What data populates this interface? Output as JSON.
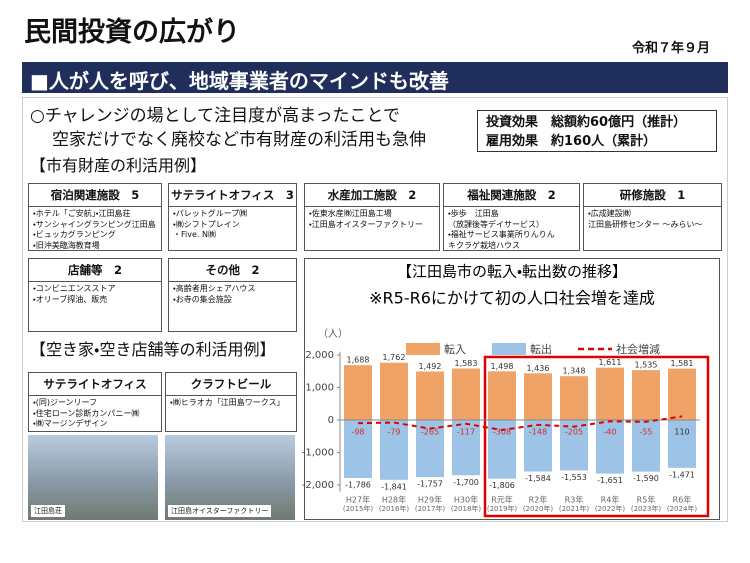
{
  "header": {
    "title": "民間投資の広がり",
    "date": "令和７年９月",
    "banner": "■人が人を呼び、地域事業者のマインドも改善"
  },
  "intro": {
    "lines": [
      "○チャレンジの場として注目度が高まったことで",
      "空家だけでなく廃校など市有財産の利活用も急伸"
    ],
    "effects": [
      "投資効果　総額約60億円（推計）",
      "雇用効果　約160人（累計）"
    ]
  },
  "public_section": {
    "heading": "【市有財産の利活用例】",
    "cards": [
      {
        "title": "宿泊関連施設　5",
        "items": [
          "・ホテル「ご安航」・江田島荘",
          "・サンシャイングランピング江田島",
          "・ビュッカグランピング",
          "・旧沖美臨海教育場"
        ]
      },
      {
        "title": "サテライトオフィス　3",
        "items": [
          "・パレットグループ㈱",
          "・㈱シフトプレイン",
          "・Five. N㈱"
        ]
      },
      {
        "title": "水産加工施設　2",
        "items": [
          "・佐東水産㈱江田島工場",
          "・江田島オイスターファクトリー"
        ]
      },
      {
        "title": "福祉関連施設　2",
        "items": [
          "・歩歩　江田島",
          "（放課後等デイサービス）",
          "・福祉サービス事業所りんりん",
          "キクラゲ栽培ハウス"
        ]
      },
      {
        "title": "研修施設　1",
        "items": [
          "・広成建設㈱",
          "江田島研修センター ～みらい～"
        ]
      },
      {
        "title": "店舗等　2",
        "items": [
          "・コンビニエンスストア",
          "・オリーブ搾油、販売"
        ]
      },
      {
        "title": "その他　2",
        "items": [
          "・高齢者用シェアハウス",
          "・お寺の集会施設"
        ]
      }
    ]
  },
  "vacant_section": {
    "heading": "【空き家・空き店舗等の利活用例】",
    "cards": [
      {
        "title": "サテライトオフィス",
        "items": [
          "・(同)ジーンリーフ",
          "・住宅ローン診断カンパニー㈱",
          "・㈱マージンデザイン"
        ]
      },
      {
        "title": "クラフトビール",
        "items": [
          "・㈱ヒラオカ「江田島ワークス」"
        ]
      }
    ],
    "photo_captions": [
      "江田島荘",
      "江田島オイスターファクトリー"
    ]
  },
  "chart_data": {
    "type": "bar",
    "title": "【江田島市の転入・転出数の推移】",
    "subtitle": "※R5-R6にかけて初の人口社会増を達成",
    "y_unit": "（人）",
    "categories": [
      "H27年",
      "H28年",
      "H29年",
      "H30年",
      "R元年",
      "R2年",
      "R3年",
      "R4年",
      "R5年",
      "R6年"
    ],
    "category_sublabels": [
      "(2015年)",
      "(2016年)",
      "(2017年)",
      "(2018年)",
      "(2019年)",
      "(2020年)",
      "(2021年)",
      "(2022年)",
      "(2023年)",
      "(2024年)"
    ],
    "series": [
      {
        "name": "転入",
        "type": "bar",
        "color": "#f0a366",
        "values": [
          1688,
          1762,
          1492,
          1583,
          1498,
          1436,
          1348,
          1611,
          1535,
          1581
        ],
        "value_labels": [
          "1,688",
          "1,762",
          "1,492",
          "1,583",
          "1,498",
          "1,436",
          "1,348",
          "1,611",
          "1,535",
          "1,581"
        ]
      },
      {
        "name": "転出",
        "type": "bar",
        "color": "#9dc3e6",
        "values": [
          -1786,
          -1841,
          -1757,
          -1700,
          -1806,
          -1584,
          -1553,
          -1651,
          -1590,
          -1471
        ],
        "value_labels": [
          "-1,786",
          "-1,841",
          "-1,757",
          "-1,700",
          "-1,806",
          "-1,584",
          "-1,553",
          "-1,651",
          "-1,590",
          "-1,471"
        ]
      },
      {
        "name": "社会増減",
        "type": "line",
        "color": "#e00000",
        "values": [
          -98,
          -79,
          -265,
          -117,
          -308,
          -148,
          -205,
          -40,
          -55,
          110
        ]
      }
    ],
    "ylim": [
      -2200,
      2100
    ],
    "yticks": [
      {
        "value": 2000,
        "label": "2,000"
      },
      {
        "value": 1000,
        "label": "1,000"
      },
      0,
      {
        "value": -1000,
        "label": "-1,000"
      },
      {
        "value": -2000,
        "label": "-2,000"
      }
    ],
    "grid": false
  }
}
